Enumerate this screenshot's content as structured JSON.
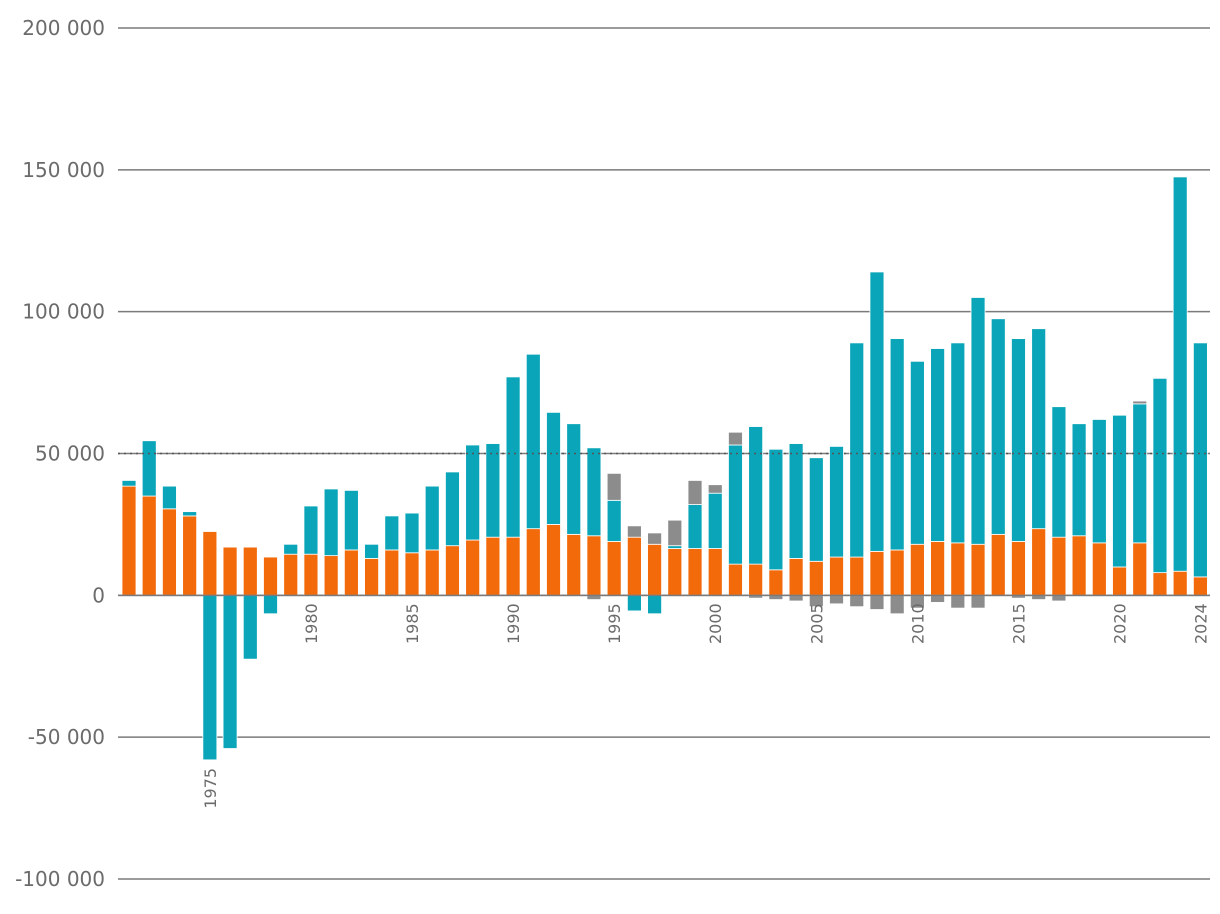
{
  "chart_data": {
    "type": "bar",
    "stacked": true,
    "title": "",
    "xlabel": "",
    "ylabel": "",
    "ylim": [
      -100000,
      200000
    ],
    "y_ticks": [
      200000,
      150000,
      100000,
      50000,
      0,
      -50000,
      -100000
    ],
    "y_tick_labels": [
      "200 000",
      "150 000",
      "100 000",
      "50 000",
      "0",
      "-50 000",
      "-100 000"
    ],
    "x_tick_labels": [
      "1975",
      "1980",
      "1985",
      "1990",
      "1995",
      "2000",
      "2005",
      "2010",
      "2015",
      "2020",
      "2024"
    ],
    "grid": true,
    "colors": {
      "orange": "#f26a09",
      "teal": "#0aa5b8",
      "gray": "#8c8c8c",
      "gridline": "#7a7a7a",
      "text": "#6b6b6b"
    },
    "categories": [
      1971,
      1972,
      1973,
      1974,
      1975,
      1976,
      1977,
      1978,
      1979,
      1980,
      1981,
      1982,
      1983,
      1984,
      1985,
      1986,
      1987,
      1988,
      1989,
      1990,
      1991,
      1992,
      1993,
      1994,
      1995,
      1996,
      1997,
      1998,
      1999,
      2000,
      2001,
      2002,
      2003,
      2004,
      2005,
      2006,
      2007,
      2008,
      2009,
      2010,
      2011,
      2012,
      2013,
      2014,
      2015,
      2016,
      2017,
      2018,
      2019,
      2020,
      2021,
      2022,
      2023,
      2024
    ],
    "series": [
      {
        "color": "#f26a09",
        "values": [
          38500,
          35000,
          30500,
          28000,
          22500,
          17000,
          17000,
          13500,
          14500,
          14500,
          14000,
          16000,
          13000,
          16000,
          15000,
          16000,
          17500,
          19500,
          20500,
          20500,
          23500,
          25000,
          21500,
          21000,
          19000,
          20500,
          18000,
          16500,
          16500,
          16500,
          11000,
          11000,
          9000,
          13000,
          12000,
          13500,
          13500,
          15500,
          16000,
          18000,
          19000,
          18500,
          18000,
          21500,
          19000,
          23500,
          20500,
          21000,
          18500,
          10000,
          18500,
          8000,
          8500,
          6500
        ]
      },
      {
        "color": "#0aa5b8",
        "values": [
          2000,
          19500,
          8000,
          1500,
          -58000,
          -54000,
          -22500,
          -6500,
          3500,
          17000,
          23500,
          21000,
          5000,
          12000,
          14000,
          22500,
          26000,
          33500,
          33000,
          56500,
          61500,
          39500,
          39000,
          31000,
          14500,
          -5500,
          -6500,
          1000,
          15500,
          19500,
          42000,
          48500,
          42500,
          40500,
          36500,
          39000,
          75500,
          98500,
          74500,
          64500,
          68000,
          70500,
          87000,
          76000,
          71500,
          70500,
          46000,
          39500,
          43500,
          53500,
          49000,
          68500,
          139000,
          82500
        ]
      },
      {
        "color": "#8c8c8c",
        "values": [
          0,
          0,
          0,
          0,
          0,
          0,
          0,
          0,
          0,
          0,
          0,
          0,
          0,
          0,
          0,
          0,
          0,
          0,
          0,
          0,
          0,
          0,
          0,
          -1500,
          9500,
          4000,
          4000,
          9000,
          8500,
          3000,
          4500,
          -1000,
          -1500,
          -2000,
          -4000,
          -3000,
          -4000,
          -5000,
          -6500,
          -4500,
          -2500,
          -4500,
          -4500,
          0,
          -1000,
          -1500,
          -2000,
          0,
          0,
          0,
          1000,
          0,
          0,
          0
        ]
      }
    ]
  }
}
